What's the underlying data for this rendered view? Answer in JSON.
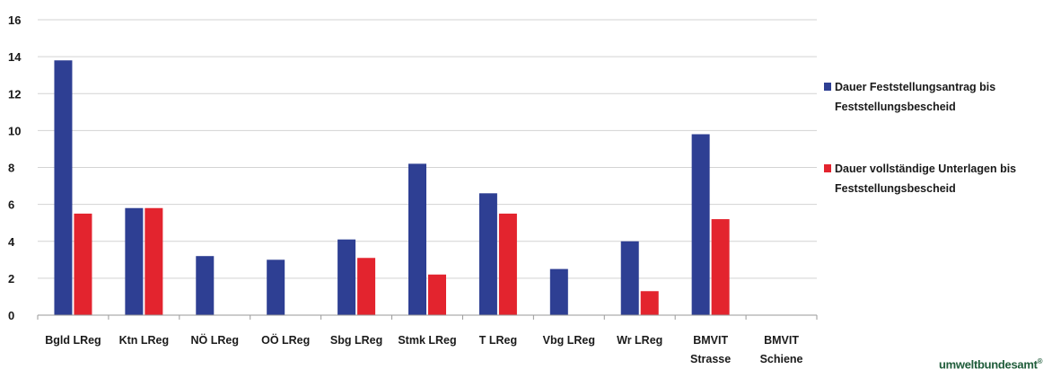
{
  "chart_data": {
    "type": "bar",
    "categories": [
      [
        "Bgld LReg"
      ],
      [
        "Ktn LReg"
      ],
      [
        "NÖ LReg"
      ],
      [
        "OÖ LReg"
      ],
      [
        "Sbg LReg"
      ],
      [
        "Stmk LReg"
      ],
      [
        "T LReg"
      ],
      [
        "Vbg LReg"
      ],
      [
        "Wr LReg"
      ],
      [
        "BMVIT",
        "Strasse"
      ],
      [
        "BMVIT",
        "Schiene"
      ]
    ],
    "series": [
      {
        "name": "Dauer Feststellungsantrag bis Feststellungsbescheid",
        "color": "#2e3f93",
        "values": [
          13.8,
          5.8,
          3.2,
          3.0,
          4.1,
          8.2,
          6.6,
          2.5,
          4.0,
          9.8,
          null
        ]
      },
      {
        "name": "Dauer vollständige Unterlagen bis Feststellungsbescheid",
        "color": "#e3242e",
        "values": [
          5.5,
          5.8,
          null,
          null,
          3.1,
          2.2,
          5.5,
          null,
          1.3,
          5.2,
          null
        ]
      }
    ],
    "ylim": [
      0,
      16
    ],
    "yticks": [
      "0",
      "2",
      "4",
      "6",
      "8",
      "10",
      "12",
      "14",
      "16"
    ],
    "grid": true,
    "legend_position": "right"
  },
  "legend": {
    "items": [
      {
        "line1": "Dauer Feststellungsantrag bis",
        "line2": "Feststellungsbescheid",
        "color": "#2e3f93"
      },
      {
        "line1": "Dauer vollständige Unterlagen bis",
        "line2": "Feststellungsbescheid",
        "color": "#e3242e"
      }
    ]
  },
  "branding": {
    "text": "umweltbundesamt",
    "mark": "®"
  }
}
